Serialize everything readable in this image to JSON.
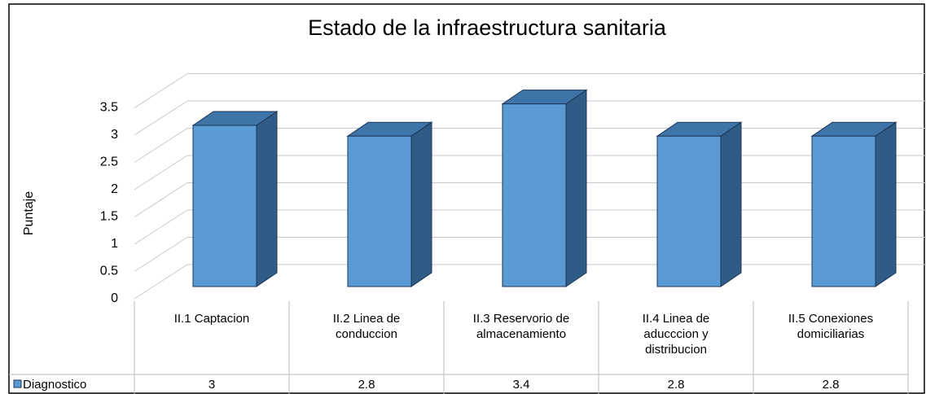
{
  "chart_data": {
    "type": "bar3d",
    "title": "Estado de la infraestructura sanitaria",
    "y_label": "Puntaje",
    "categories": [
      "II.1 Captacion",
      "II.2 Linea de conduccion",
      "II.3 Reservorio de almacenamiento",
      "II.4 Linea de aducccion y distribucion",
      "II.5 Conexiones domiciliarias"
    ],
    "series": [
      {
        "name": "Diagnostico",
        "color": "#5b9bd5",
        "values": [
          3,
          2.8,
          3.4,
          2.8,
          2.8
        ]
      }
    ],
    "ylim": [
      0,
      3.5
    ],
    "yticks": [
      0,
      0.5,
      1,
      1.5,
      2,
      2.5,
      3,
      3.5
    ],
    "grid": true,
    "data_table": true
  }
}
